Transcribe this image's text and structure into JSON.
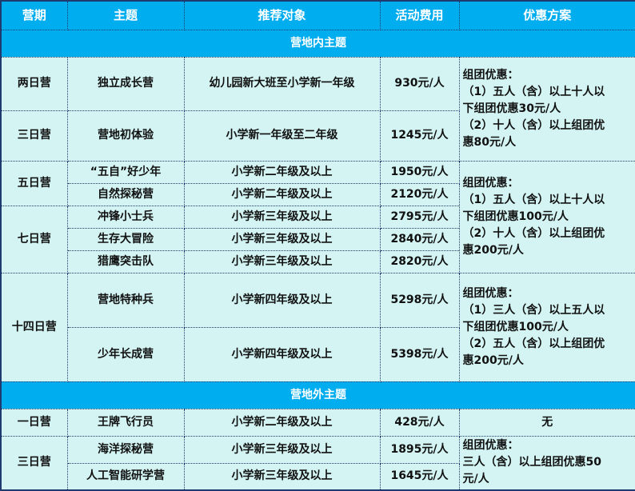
{
  "headers": [
    "营期",
    "主题",
    "推荐对象",
    "活动费用",
    "优惠方案"
  ],
  "section1": "营地内主题",
  "section2": "营地外主题",
  "rows": {
    "r1": {
      "period": "两日营",
      "theme": "独立成长营",
      "target": "幼儿园新大班至小学新一年级",
      "fee": "930元/人"
    },
    "r2": {
      "period": "三日营",
      "theme": "营地初体验",
      "target": "小学新一年级至二年级",
      "fee": "1245元/人"
    },
    "r3": {
      "period": "五日营",
      "theme": "“五自”好少年",
      "target": "小学新二年级及以上",
      "fee": "1950元/人"
    },
    "r4": {
      "theme": "自然探秘营",
      "target": "小学新二年级及以上",
      "fee": "2120元/人"
    },
    "r5": {
      "period": "七日营",
      "theme": "冲锋小士兵",
      "target": "小学新三年级及以上",
      "fee": "2795元/人"
    },
    "r6": {
      "theme": "生存大冒险",
      "target": "小学新三年级及以上",
      "fee": "2840元/人"
    },
    "r7": {
      "theme": "猎鹰突击队",
      "target": "小学新三年级及以上",
      "fee": "2820元/人"
    },
    "r8": {
      "period": "十四日营",
      "theme": "营地特种兵",
      "target": "小学新四年级及以上",
      "fee": "5298元/人"
    },
    "r9": {
      "theme": "少年长成营",
      "target": "小学新四年级及以上",
      "fee": "5398元/人"
    },
    "r10": {
      "period": "一日营",
      "theme": "王牌飞行员",
      "target": "小学新二年级及以上",
      "fee": "428元/人",
      "offer": "无"
    },
    "r11": {
      "period": "三日营",
      "theme": "海洋探秘营",
      "target": "小学新三年级及以上",
      "fee": "1895元/人"
    },
    "r12": {
      "theme": "人工智能研学营",
      "target": "小学新三年级及以上",
      "fee": "1645元/人"
    }
  },
  "offers": {
    "a": [
      "组团优惠：",
      "（1）五人（含）以上十人以",
      "下组团优惠30元/人",
      "（2）十人（含）以上组团优",
      "惠80元/人"
    ],
    "b": [
      "组团优惠：",
      "（1）五人（含）以上十人以",
      "下组团优惠100元/人",
      "（2）十人（含）以上组团优",
      "惠200元/人"
    ],
    "c": [
      "组团优惠：",
      "（1）三人（含）以上五人以",
      "下组团优惠100元/人",
      "（2）五人（含）以上组团优",
      "惠200元/人"
    ],
    "d": [
      "组团优惠：",
      "三人（含）以上组团优惠50",
      "元/人"
    ]
  },
  "colors": {
    "header_bg": "#00adef",
    "cell_bg": "#d3f4f3",
    "border": "#1f3a6e"
  }
}
